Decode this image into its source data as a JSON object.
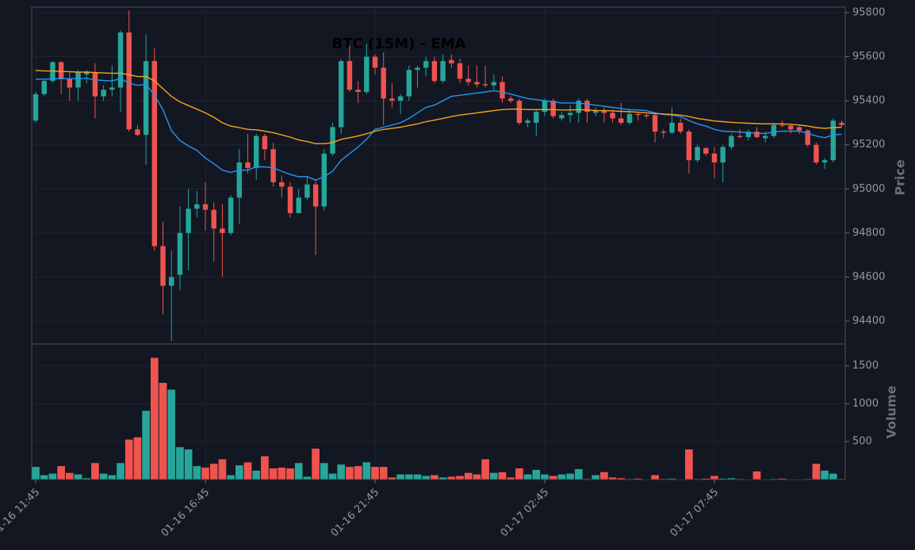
{
  "chart_data": {
    "type": "candlestick",
    "title": "BTC (15M) - EMA",
    "ylabel": "Price",
    "volume_label": "Volume",
    "up_color": "#26a69a",
    "down_color": "#ef5350",
    "xlim": [
      -0.47,
      95.42
    ],
    "xticks": [
      {
        "value": 0,
        "label": "01-16 11:45"
      },
      {
        "value": 20,
        "label": "01-16 16:45"
      },
      {
        "value": 40,
        "label": "01-16 21:45"
      },
      {
        "value": 60,
        "label": "01-17 02:45"
      },
      {
        "value": 80,
        "label": "01-17 07:45"
      }
    ],
    "ylim": [
      94296,
      95825
    ],
    "yticks": [
      94400,
      94600,
      94800,
      95000,
      95200,
      95400,
      95600,
      95800
    ],
    "volume_ylim": [
      0,
      1790
    ],
    "volume_yticks": [
      500,
      1000,
      1500
    ],
    "grid": true,
    "open": [
      95310,
      95430,
      95490,
      95575,
      95500,
      95460,
      95520,
      95530,
      95420,
      95450,
      95460,
      95710,
      95270,
      95245,
      95580,
      94740,
      94560,
      94610,
      94800,
      94910,
      94930,
      94905,
      94820,
      94800,
      94960,
      95120,
      95095,
      95240,
      95180,
      95030,
      95010,
      94890,
      94960,
      95020,
      94920,
      95160,
      95280,
      95580,
      95450,
      95440,
      95600,
      95550,
      95410,
      95400,
      95420,
      95540,
      95550,
      95580,
      95490,
      95585,
      95570,
      95500,
      95485,
      95475,
      95470,
      95485,
      95410,
      95400,
      95300,
      95300,
      95350,
      95400,
      95320,
      95335,
      95345,
      95400,
      95345,
      95355,
      95345,
      95320,
      95300,
      95340,
      95335,
      95335,
      95260,
      95255,
      95300,
      95260,
      95130,
      95185,
      95160,
      95120,
      95190,
      95240,
      95235,
      95260,
      95230,
      95240,
      95290,
      95287,
      95280,
      95265,
      95200,
      95120,
      95130,
      95300
    ],
    "high": [
      95440,
      95500,
      95580,
      95580,
      95530,
      95540,
      95540,
      95570,
      95470,
      95560,
      95720,
      95810,
      95290,
      95700,
      95640,
      94850,
      94720,
      94920,
      95000,
      94990,
      95030,
      94940,
      94930,
      94970,
      95180,
      95250,
      95250,
      95250,
      95210,
      95060,
      95030,
      95000,
      95060,
      95040,
      95180,
      95300,
      95590,
      95650,
      95490,
      95660,
      95610,
      95620,
      95480,
      95430,
      95560,
      95560,
      95600,
      95600,
      95610,
      95610,
      95590,
      95560,
      95560,
      95560,
      95520,
      95510,
      95420,
      95410,
      95320,
      95360,
      95410,
      95410,
      95350,
      95380,
      95410,
      95410,
      95370,
      95370,
      95360,
      95390,
      95360,
      95350,
      95340,
      95340,
      95270,
      95370,
      95320,
      95270,
      95200,
      95190,
      95190,
      95200,
      95250,
      95270,
      95270,
      95280,
      95260,
      95300,
      95310,
      95295,
      95290,
      95270,
      95210,
      95140,
      95320,
      95310
    ],
    "low": [
      95300,
      95420,
      95480,
      95430,
      95400,
      95400,
      95480,
      95320,
      95400,
      95420,
      95350,
      95260,
      95240,
      95110,
      94720,
      94430,
      94310,
      94540,
      94630,
      94870,
      94810,
      94670,
      94600,
      94790,
      94840,
      95070,
      95040,
      95130,
      95010,
      94960,
      94870,
      94890,
      94950,
      94700,
      94900,
      95150,
      95250,
      95440,
      95390,
      95430,
      95520,
      95290,
      95370,
      95340,
      95400,
      95460,
      95510,
      95480,
      95480,
      95550,
      95480,
      95470,
      95460,
      95460,
      95450,
      95390,
      95390,
      95290,
      95280,
      95240,
      95330,
      95320,
      95310,
      95300,
      95300,
      95300,
      95330,
      95300,
      95300,
      95290,
      95290,
      95310,
      95320,
      95210,
      95230,
      95250,
      95250,
      95070,
      95120,
      95150,
      95050,
      95030,
      95180,
      95230,
      95220,
      95230,
      95210,
      95230,
      95280,
      95250,
      95250,
      95190,
      95110,
      95090,
      95120,
      95280
    ],
    "close": [
      95430,
      95490,
      95575,
      95500,
      95460,
      95530,
      95530,
      95420,
      95450,
      95460,
      95710,
      95270,
      95245,
      95580,
      94740,
      94560,
      94600,
      94800,
      94910,
      94930,
      94905,
      94820,
      94800,
      94960,
      95120,
      95095,
      95240,
      95180,
      95030,
      95010,
      94890,
      94960,
      95020,
      94920,
      95160,
      95280,
      95580,
      95450,
      95440,
      95600,
      95550,
      95410,
      95400,
      95420,
      95540,
      95550,
      95580,
      95490,
      95580,
      95570,
      95500,
      95485,
      95475,
      95470,
      95485,
      95410,
      95400,
      95300,
      95310,
      95350,
      95400,
      95330,
      95335,
      95345,
      95400,
      95350,
      95355,
      95345,
      95320,
      95300,
      95340,
      95335,
      95330,
      95260,
      95255,
      95300,
      95260,
      95130,
      95190,
      95160,
      95120,
      95190,
      95240,
      95235,
      95260,
      95235,
      95240,
      95290,
      95287,
      95270,
      95265,
      95200,
      95120,
      95130,
      95310,
      95290
    ],
    "volume": [
      170,
      60,
      80,
      180,
      90,
      70,
      20,
      220,
      80,
      60,
      220,
      530,
      560,
      910,
      1610,
      1280,
      1190,
      430,
      400,
      180,
      160,
      210,
      270,
      60,
      190,
      230,
      120,
      310,
      150,
      160,
      150,
      220,
      40,
      410,
      220,
      80,
      200,
      170,
      180,
      230,
      170,
      170,
      30,
      70,
      70,
      70,
      50,
      60,
      30,
      40,
      50,
      90,
      70,
      270,
      90,
      100,
      30,
      150,
      70,
      130,
      70,
      50,
      70,
      80,
      140,
      10,
      60,
      100,
      30,
      20,
      10,
      15,
      5,
      60,
      10,
      15,
      5,
      400,
      10,
      15,
      50,
      15,
      20,
      10,
      5,
      110,
      5,
      10,
      15,
      5,
      5,
      10,
      210,
      120,
      80,
      10
    ],
    "series": [
      {
        "color": "#2196f3",
        "values": [
          95498,
          95498,
          95500,
          95500,
          95500,
          95500,
          95502,
          95495,
          95492,
          95490,
          95500,
          95480,
          95470,
          95475,
          95425,
          95360,
          95265,
          95220,
          95195,
          95175,
          95140,
          95115,
          95085,
          95075,
          95085,
          95085,
          95100,
          95100,
          95095,
          95080,
          95065,
          95055,
          95055,
          95040,
          95055,
          95080,
          95130,
          95160,
          95190,
          95225,
          95270,
          95280,
          95290,
          95300,
          95320,
          95345,
          95370,
          95380,
          95400,
          95420,
          95425,
          95430,
          95435,
          95440,
          95445,
          95440,
          95430,
          95420,
          95410,
          95405,
          95400,
          95395,
          95390,
          95390,
          95390,
          95385,
          95380,
          95375,
          95370,
          95365,
          95360,
          95358,
          95355,
          95345,
          95338,
          95335,
          95328,
          95310,
          95295,
          95285,
          95270,
          95262,
          95260,
          95258,
          95256,
          95252,
          95252,
          95258,
          95262,
          95262,
          95262,
          95252,
          95240,
          95232,
          95245,
          95248
        ]
      },
      {
        "color": "#f7a21b",
        "values": [
          95538,
          95535,
          95535,
          95533,
          95532,
          95530,
          95530,
          95528,
          95526,
          95525,
          95525,
          95518,
          95510,
          95510,
          95490,
          95455,
          95420,
          95395,
          95378,
          95362,
          95345,
          95325,
          95300,
          95285,
          95278,
          95270,
          95268,
          95262,
          95255,
          95245,
          95235,
          95222,
          95215,
          95205,
          95205,
          95210,
          95225,
          95232,
          95240,
          95250,
          95262,
          95270,
          95275,
          95280,
          95288,
          95295,
          95305,
          95312,
          95320,
          95328,
          95335,
          95340,
          95345,
          95350,
          95355,
          95360,
          95362,
          95362,
          95360,
          95360,
          95360,
          95360,
          95358,
          95358,
          95360,
          95358,
          95356,
          95355,
          95354,
          95352,
          95350,
          95348,
          95345,
          95342,
          95340,
          95338,
          95335,
          95328,
          95320,
          95314,
          95308,
          95305,
          95302,
          95300,
          95298,
          95296,
          95295,
          95295,
          95295,
          95293,
          95290,
          95285,
          95278,
          95275,
          95278,
          95280
        ]
      }
    ]
  }
}
